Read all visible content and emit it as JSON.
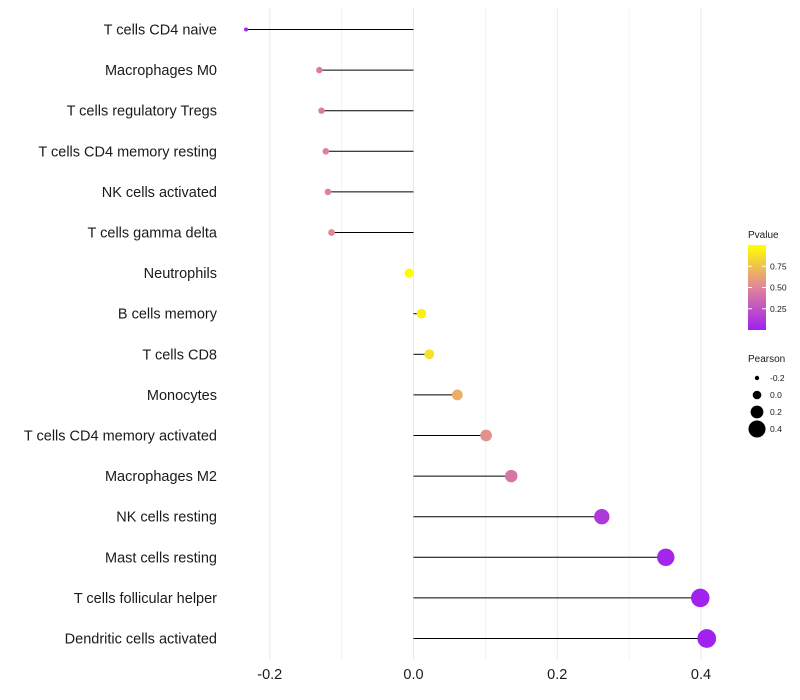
{
  "chart_data": {
    "type": "lollipop",
    "title": "",
    "xlabel": "",
    "ylabel": "",
    "xlim": [
      -0.235,
      0.435
    ],
    "x_ticks": [
      -0.2,
      0.0,
      0.2,
      0.4
    ],
    "x_tick_labels": [
      "-0.2",
      "0.0",
      "0.2",
      "0.4"
    ],
    "grid": true,
    "categories": [
      "T cells CD4 naive",
      "Macrophages M0",
      "T cells regulatory  Tregs",
      "T cells CD4 memory resting",
      "NK cells activated",
      "T cells gamma delta",
      "Neutrophils",
      "B cells memory",
      "T cells CD8",
      "Monocytes",
      "T cells CD4 memory activated",
      "Macrophages M2",
      "NK cells resting",
      "Mast cells resting",
      "T cells follicular helper",
      "Dendritic cells activated"
    ],
    "pearson": [
      -0.233,
      -0.131,
      -0.128,
      -0.122,
      -0.119,
      -0.114,
      -0.006,
      0.011,
      0.022,
      0.061,
      0.101,
      0.136,
      0.262,
      0.351,
      0.399,
      0.408
    ],
    "pvalue": [
      0.03,
      0.45,
      0.46,
      0.48,
      0.49,
      0.51,
      0.98,
      0.94,
      0.88,
      0.67,
      0.55,
      0.42,
      0.12,
      0.03,
      0.006,
      0.005
    ],
    "legend": {
      "position": "right",
      "pvalue": {
        "title": "Pvalue",
        "ticks": [
          0.25,
          0.5,
          0.75
        ],
        "tick_labels": [
          "0.25",
          "0.50",
          "0.75"
        ],
        "range": [
          0.0,
          1.0
        ],
        "color_low": "#a020f0",
        "color_high": "#ffff00"
      },
      "pearson": {
        "title": "Pearson",
        "values": [
          -0.2,
          0.0,
          0.2,
          0.4
        ],
        "labels": [
          "-0.2",
          "0.0",
          "0.2",
          "0.4"
        ]
      }
    },
    "colors": {
      "stem": "#000000",
      "grid": "#ebebeb",
      "low": "#a020f0",
      "mid": "#e0859a",
      "high": "#ffff00"
    }
  }
}
